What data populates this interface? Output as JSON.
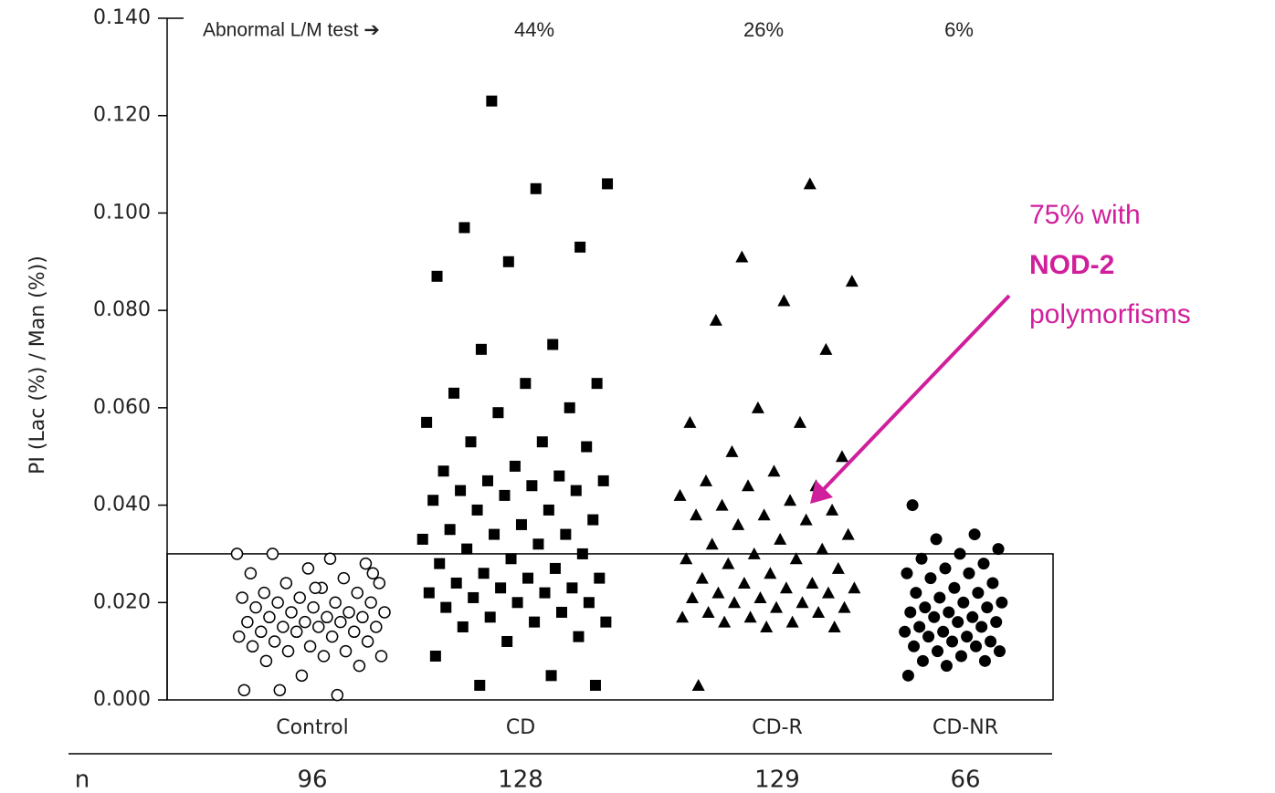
{
  "chart_data": {
    "type": "scatter",
    "ylabel": "PI (Lac (%) / Man (%))",
    "categories": [
      "Control",
      "CD",
      "CD-R",
      "CD-NR"
    ],
    "ylim": [
      0,
      0.14
    ],
    "yticks": [
      {
        "value": 0,
        "label": "0.000"
      },
      {
        "value": 0.02,
        "label": "0.020"
      },
      {
        "value": 0.04,
        "label": "0.040"
      },
      {
        "value": 0.06,
        "label": "0.060"
      },
      {
        "value": 0.08,
        "label": "0.080"
      },
      {
        "value": 0.1,
        "label": "0.100"
      },
      {
        "value": 0.12,
        "label": "0.120"
      },
      {
        "value": 0.14,
        "label": "0.140"
      }
    ],
    "threshold": 0.03,
    "series": [
      {
        "name": "Control",
        "marker": "open-circle",
        "color": "#000000",
        "values": [
          0.03,
          0.029,
          0.03,
          0.028,
          0.027,
          0.026,
          0.025,
          0.024,
          0.024,
          0.023,
          0.022,
          0.022,
          0.021,
          0.021,
          0.02,
          0.02,
          0.02,
          0.019,
          0.019,
          0.018,
          0.018,
          0.018,
          0.017,
          0.017,
          0.017,
          0.016,
          0.016,
          0.016,
          0.015,
          0.015,
          0.015,
          0.014,
          0.014,
          0.014,
          0.013,
          0.013,
          0.012,
          0.012,
          0.011,
          0.011,
          0.01,
          0.01,
          0.009,
          0.009,
          0.008,
          0.007,
          0.005,
          0.002,
          0.001,
          0.002,
          0.026,
          0.023
        ]
      },
      {
        "name": "CD",
        "marker": "square",
        "color": "#000000",
        "values": [
          0.123,
          0.106,
          0.105,
          0.097,
          0.093,
          0.09,
          0.087,
          0.073,
          0.072,
          0.065,
          0.065,
          0.063,
          0.06,
          0.059,
          0.057,
          0.053,
          0.053,
          0.052,
          0.048,
          0.047,
          0.046,
          0.045,
          0.045,
          0.044,
          0.043,
          0.043,
          0.042,
          0.041,
          0.039,
          0.039,
          0.037,
          0.036,
          0.035,
          0.034,
          0.034,
          0.033,
          0.032,
          0.031,
          0.03,
          0.029,
          0.028,
          0.027,
          0.026,
          0.025,
          0.025,
          0.024,
          0.023,
          0.023,
          0.022,
          0.022,
          0.021,
          0.02,
          0.02,
          0.019,
          0.018,
          0.017,
          0.016,
          0.016,
          0.015,
          0.013,
          0.012,
          0.009,
          0.005,
          0.003,
          0.003
        ]
      },
      {
        "name": "CD-R",
        "marker": "triangle",
        "color": "#000000",
        "values": [
          0.106,
          0.091,
          0.086,
          0.082,
          0.078,
          0.072,
          0.06,
          0.057,
          0.057,
          0.051,
          0.05,
          0.047,
          0.045,
          0.044,
          0.044,
          0.042,
          0.041,
          0.04,
          0.039,
          0.038,
          0.038,
          0.037,
          0.036,
          0.034,
          0.033,
          0.032,
          0.031,
          0.03,
          0.029,
          0.029,
          0.028,
          0.027,
          0.026,
          0.025,
          0.024,
          0.024,
          0.023,
          0.023,
          0.022,
          0.022,
          0.021,
          0.021,
          0.02,
          0.02,
          0.019,
          0.019,
          0.018,
          0.018,
          0.017,
          0.017,
          0.016,
          0.016,
          0.015,
          0.015,
          0.003
        ]
      },
      {
        "name": "CD-NR",
        "marker": "circle",
        "color": "#000000",
        "values": [
          0.04,
          0.034,
          0.033,
          0.031,
          0.03,
          0.029,
          0.028,
          0.027,
          0.026,
          0.026,
          0.025,
          0.024,
          0.023,
          0.022,
          0.022,
          0.021,
          0.02,
          0.02,
          0.019,
          0.019,
          0.018,
          0.018,
          0.017,
          0.017,
          0.016,
          0.016,
          0.015,
          0.015,
          0.014,
          0.014,
          0.013,
          0.013,
          0.012,
          0.012,
          0.011,
          0.011,
          0.01,
          0.01,
          0.009,
          0.008,
          0.008,
          0.007,
          0.005
        ]
      }
    ],
    "n_label": "n",
    "counts": [
      96,
      128,
      129,
      66
    ],
    "abnormal_label": "Abnormal L/M test ➔",
    "abnormal": {
      "values": [
        44,
        26,
        6
      ],
      "value_labels": [
        "44%",
        "26%",
        "6%"
      ]
    },
    "callout": {
      "lines": [
        "75% with",
        "NOD-2",
        "polymorfisms"
      ],
      "color": "#d01f9c"
    }
  }
}
